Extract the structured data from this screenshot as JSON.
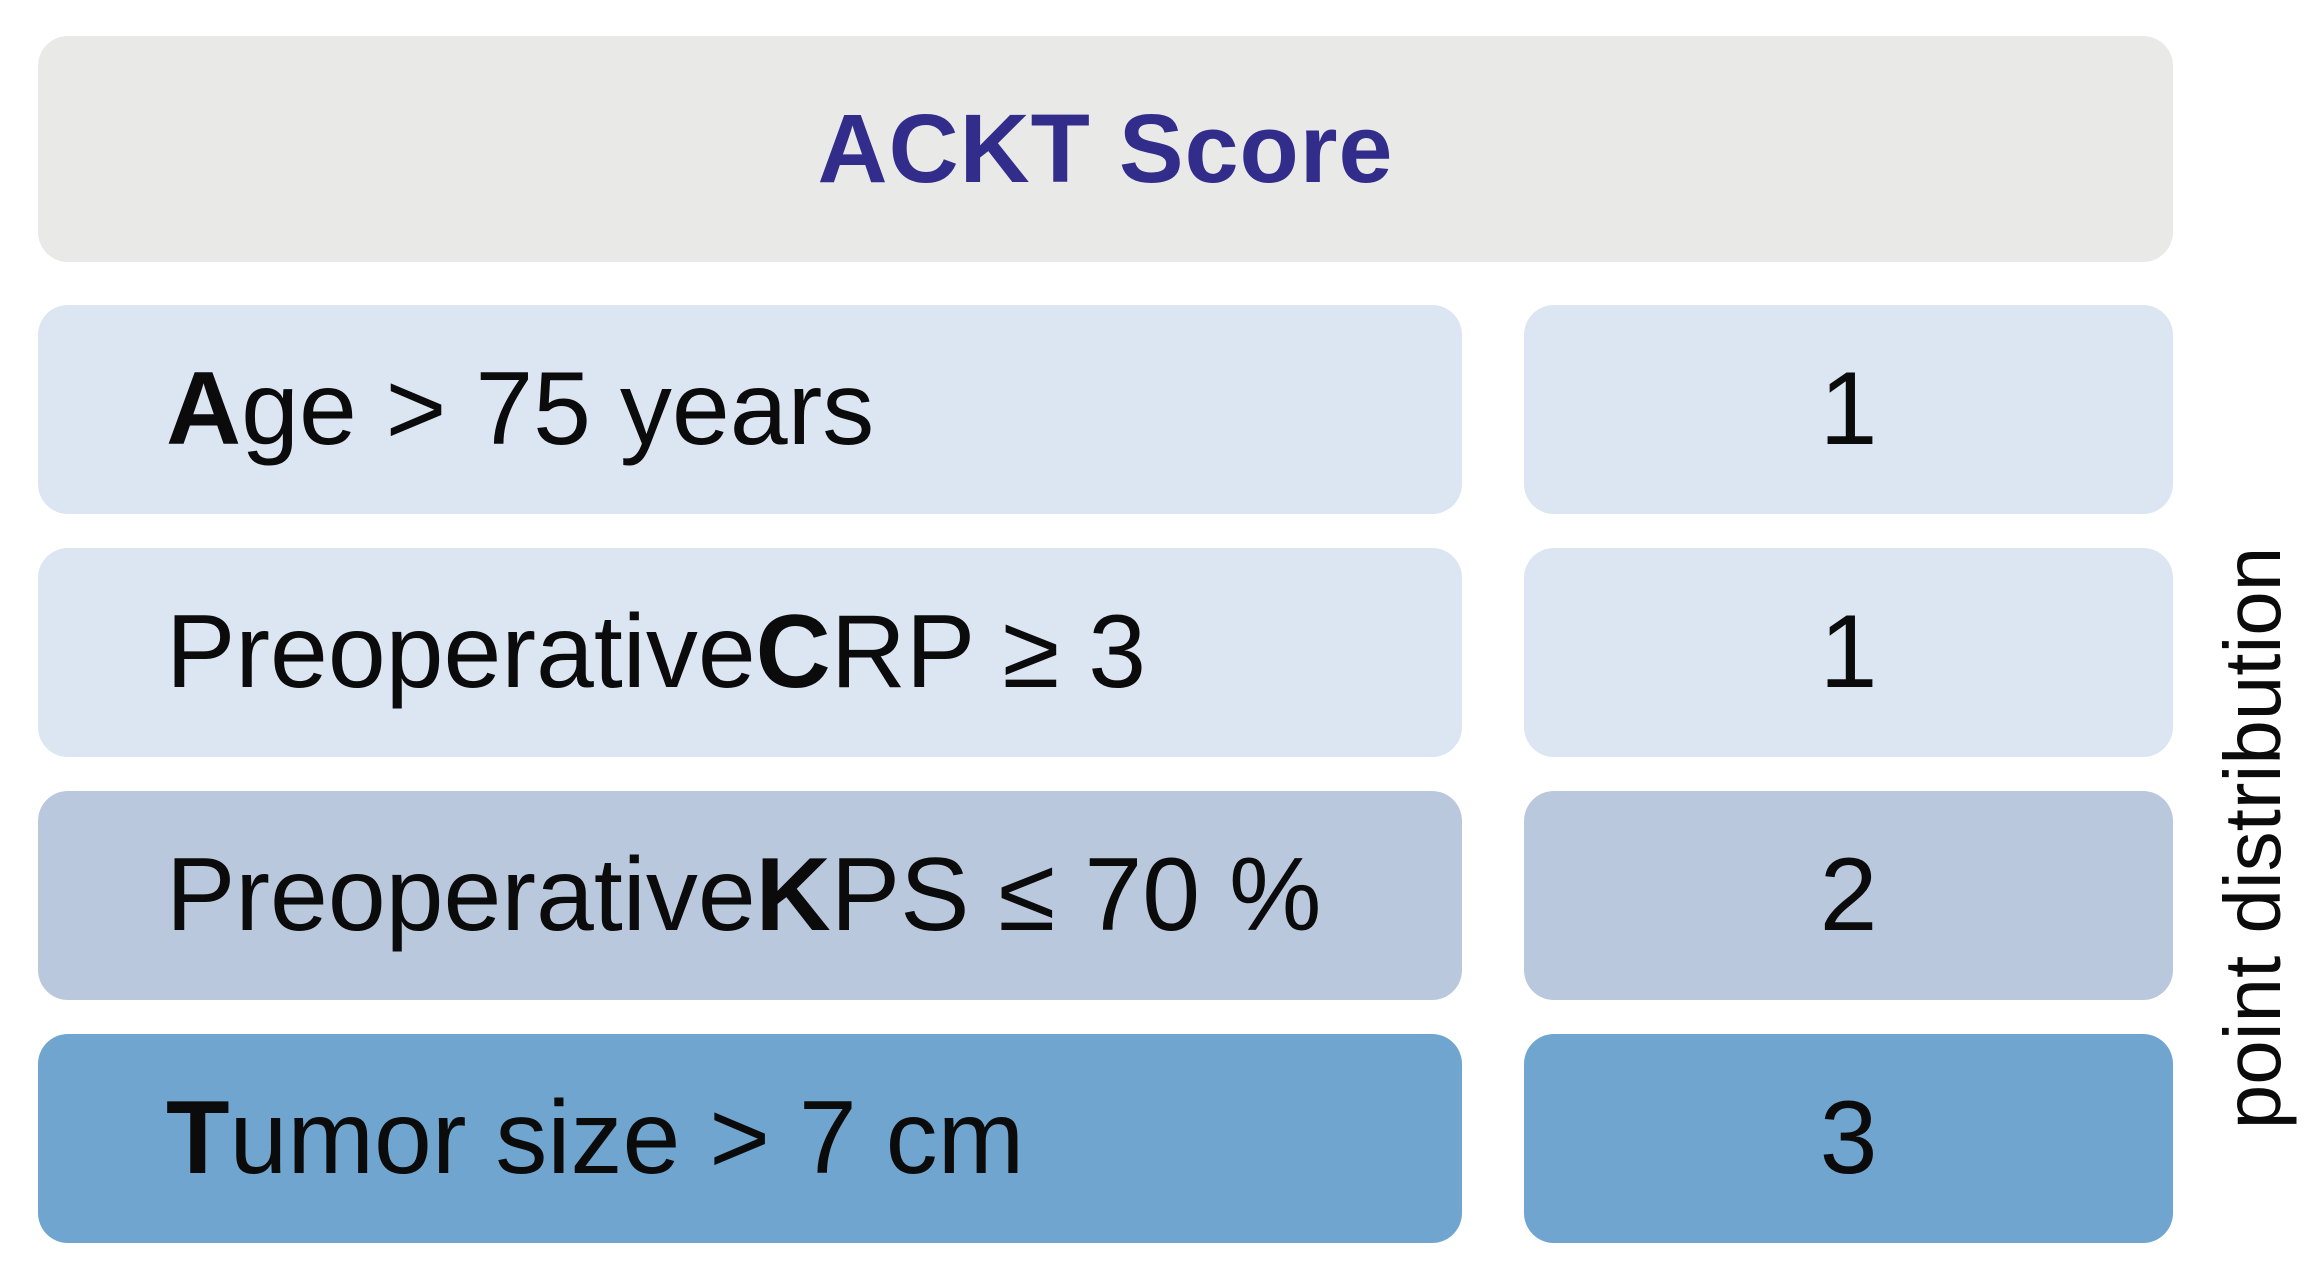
{
  "header": {
    "title": "ACKT Score",
    "title_color": "#322d8a",
    "bg": "#e9e9e8"
  },
  "rows": [
    {
      "label_prefix": "",
      "label_bold": "A",
      "label_suffix": "ge > 75 years",
      "points": "1",
      "color": "#dce5f2"
    },
    {
      "label_prefix": "Preoperative ",
      "label_bold": "C",
      "label_suffix": "RP ≥ 3",
      "points": "1",
      "color": "#dce5f2"
    },
    {
      "label_prefix": "Preoperative ",
      "label_bold": "K",
      "label_suffix": "PS ≤ 70 %",
      "points": "2",
      "color": "#bac8de"
    },
    {
      "label_prefix": "",
      "label_bold": "T",
      "label_suffix": "umor size > 7 cm",
      "points": "3",
      "color": "#6fa5cf"
    }
  ],
  "side_label": "point distribution",
  "text_color": "#0b0b0b",
  "chart_data": {
    "type": "table",
    "title": "ACKT Score",
    "columns": [
      "criterion",
      "point distribution"
    ],
    "rows": [
      {
        "criterion": "Age > 75 years",
        "points": 1
      },
      {
        "criterion": "Preoperative CRP ≥ 3",
        "points": 1
      },
      {
        "criterion": "Preoperative KPS ≤ 70 %",
        "points": 2
      },
      {
        "criterion": "Tumor size > 7 cm",
        "points": 3
      }
    ],
    "right_axis_label": "point distribution",
    "row_colors": [
      "#dce5f2",
      "#dce5f2",
      "#bac8de",
      "#6fa5cf"
    ],
    "legend_position": "none",
    "layout_hint": "row shading darkens as point weight increases"
  }
}
